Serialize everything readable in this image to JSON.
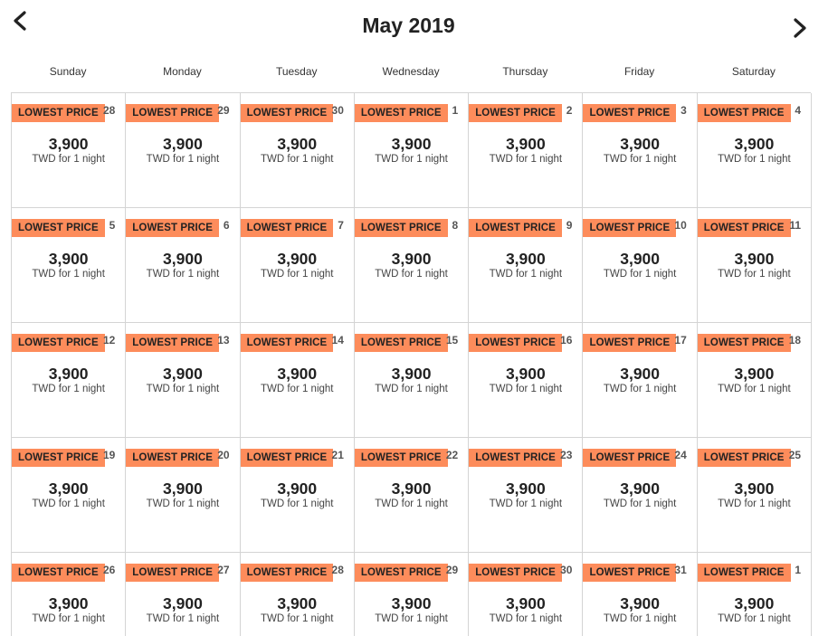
{
  "header": {
    "title": "May 2019",
    "prev_icon": "chevron-left-icon",
    "next_icon": "chevron-right-icon"
  },
  "weekdays": [
    "Sunday",
    "Monday",
    "Tuesday",
    "Wednesday",
    "Thursday",
    "Friday",
    "Saturday"
  ],
  "colors": {
    "badge": "#fd8c5b",
    "border": "#d4d4d4",
    "text": "#222222"
  },
  "days": [
    {
      "day": "28",
      "badge": "LOWEST PRICE",
      "price": "3,900",
      "unit": "TWD for 1 night"
    },
    {
      "day": "29",
      "badge": "LOWEST PRICE",
      "price": "3,900",
      "unit": "TWD for 1 night"
    },
    {
      "day": "30",
      "badge": "LOWEST PRICE",
      "price": "3,900",
      "unit": "TWD for 1 night"
    },
    {
      "day": "1",
      "badge": "LOWEST PRICE",
      "price": "3,900",
      "unit": "TWD for 1 night"
    },
    {
      "day": "2",
      "badge": "LOWEST PRICE",
      "price": "3,900",
      "unit": "TWD for 1 night"
    },
    {
      "day": "3",
      "badge": "LOWEST PRICE",
      "price": "3,900",
      "unit": "TWD for 1 night"
    },
    {
      "day": "4",
      "badge": "LOWEST PRICE",
      "price": "3,900",
      "unit": "TWD for 1 night"
    },
    {
      "day": "5",
      "badge": "LOWEST PRICE",
      "price": "3,900",
      "unit": "TWD for 1 night"
    },
    {
      "day": "6",
      "badge": "LOWEST PRICE",
      "price": "3,900",
      "unit": "TWD for 1 night"
    },
    {
      "day": "7",
      "badge": "LOWEST PRICE",
      "price": "3,900",
      "unit": "TWD for 1 night"
    },
    {
      "day": "8",
      "badge": "LOWEST PRICE",
      "price": "3,900",
      "unit": "TWD for 1 night"
    },
    {
      "day": "9",
      "badge": "LOWEST PRICE",
      "price": "3,900",
      "unit": "TWD for 1 night"
    },
    {
      "day": "10",
      "badge": "LOWEST PRICE",
      "price": "3,900",
      "unit": "TWD for 1 night"
    },
    {
      "day": "11",
      "badge": "LOWEST PRICE",
      "price": "3,900",
      "unit": "TWD for 1 night"
    },
    {
      "day": "12",
      "badge": "LOWEST PRICE",
      "price": "3,900",
      "unit": "TWD for 1 night"
    },
    {
      "day": "13",
      "badge": "LOWEST PRICE",
      "price": "3,900",
      "unit": "TWD for 1 night"
    },
    {
      "day": "14",
      "badge": "LOWEST PRICE",
      "price": "3,900",
      "unit": "TWD for 1 night"
    },
    {
      "day": "15",
      "badge": "LOWEST PRICE",
      "price": "3,900",
      "unit": "TWD for 1 night"
    },
    {
      "day": "16",
      "badge": "LOWEST PRICE",
      "price": "3,900",
      "unit": "TWD for 1 night"
    },
    {
      "day": "17",
      "badge": "LOWEST PRICE",
      "price": "3,900",
      "unit": "TWD for 1 night"
    },
    {
      "day": "18",
      "badge": "LOWEST PRICE",
      "price": "3,900",
      "unit": "TWD for 1 night"
    },
    {
      "day": "19",
      "badge": "LOWEST PRICE",
      "price": "3,900",
      "unit": "TWD for 1 night"
    },
    {
      "day": "20",
      "badge": "LOWEST PRICE",
      "price": "3,900",
      "unit": "TWD for 1 night"
    },
    {
      "day": "21",
      "badge": "LOWEST PRICE",
      "price": "3,900",
      "unit": "TWD for 1 night"
    },
    {
      "day": "22",
      "badge": "LOWEST PRICE",
      "price": "3,900",
      "unit": "TWD for 1 night"
    },
    {
      "day": "23",
      "badge": "LOWEST PRICE",
      "price": "3,900",
      "unit": "TWD for 1 night"
    },
    {
      "day": "24",
      "badge": "LOWEST PRICE",
      "price": "3,900",
      "unit": "TWD for 1 night"
    },
    {
      "day": "25",
      "badge": "LOWEST PRICE",
      "price": "3,900",
      "unit": "TWD for 1 night"
    },
    {
      "day": "26",
      "badge": "LOWEST PRICE",
      "price": "3,900",
      "unit": "TWD for 1 night"
    },
    {
      "day": "27",
      "badge": "LOWEST PRICE",
      "price": "3,900",
      "unit": "TWD for 1 night"
    },
    {
      "day": "28",
      "badge": "LOWEST PRICE",
      "price": "3,900",
      "unit": "TWD for 1 night"
    },
    {
      "day": "29",
      "badge": "LOWEST PRICE",
      "price": "3,900",
      "unit": "TWD for 1 night"
    },
    {
      "day": "30",
      "badge": "LOWEST PRICE",
      "price": "3,900",
      "unit": "TWD for 1 night"
    },
    {
      "day": "31",
      "badge": "LOWEST PRICE",
      "price": "3,900",
      "unit": "TWD for 1 night"
    },
    {
      "day": "1",
      "badge": "LOWEST PRICE",
      "price": "3,900",
      "unit": "TWD for 1 night"
    }
  ]
}
